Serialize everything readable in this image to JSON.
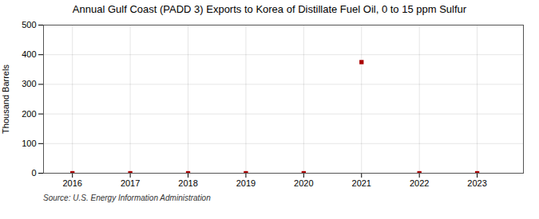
{
  "chart_data": {
    "type": "scatter",
    "title": "Annual Gulf Coast (PADD 3) Exports to Korea of Distillate Fuel Oil, 0 to 15 ppm Sulfur",
    "ylabel": "Thousand Barrels",
    "source": "Source: U.S. Energy Information Administration",
    "x": [
      2016,
      2017,
      2018,
      2019,
      2020,
      2021,
      2022,
      2023
    ],
    "values": [
      0,
      0,
      0,
      0,
      0,
      375,
      0,
      0
    ],
    "color": "#AA0000",
    "marker": "square",
    "xlim": [
      2015.5,
      2023.8
    ],
    "xticks": [
      2016,
      2017,
      2018,
      2019,
      2020,
      2021,
      2022,
      2023
    ],
    "ylim": [
      0,
      500
    ],
    "yticks": [
      0,
      100,
      200,
      300,
      400,
      500
    ],
    "grid": true
  }
}
